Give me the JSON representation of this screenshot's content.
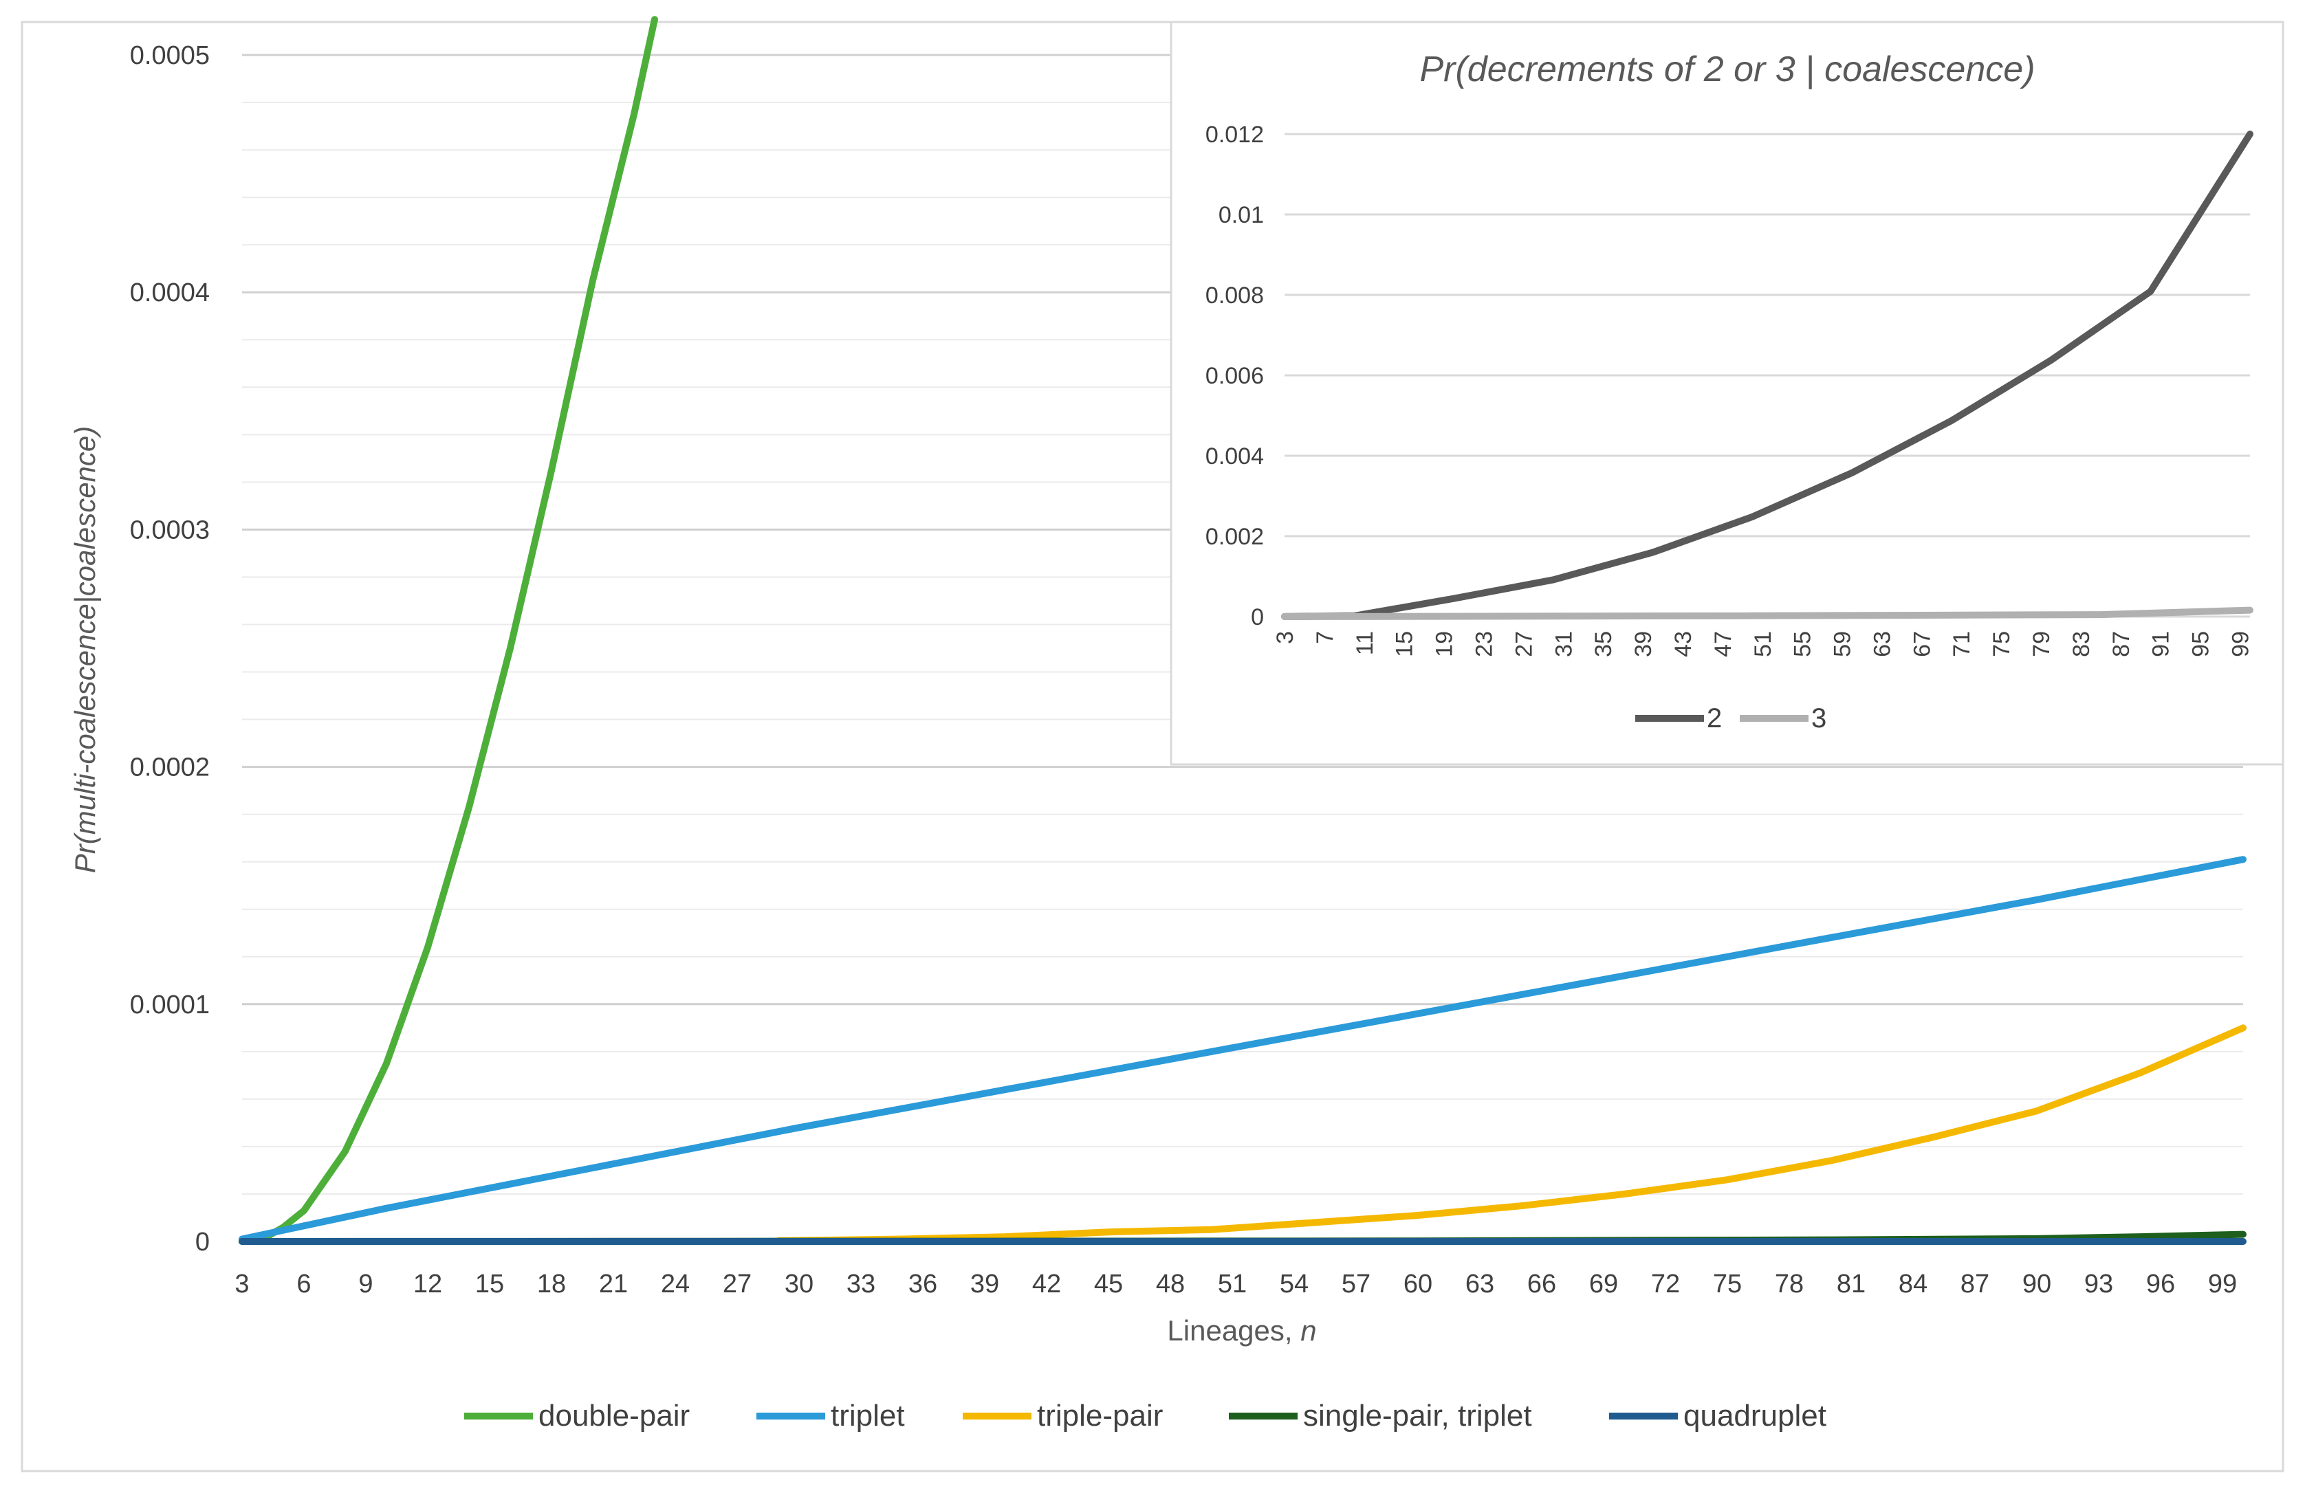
{
  "chart_data": [
    {
      "type": "line",
      "title": "",
      "xlabel_prefix": "Lineages, ",
      "xlabel_var": "n",
      "ylabel": "Pr(multi-coalescence|coalescence)",
      "xlim": [
        3,
        100
      ],
      "ylim": [
        0,
        0.0005
      ],
      "y_ticks": [
        "0",
        "0.0001",
        "0.0002",
        "0.0003",
        "0.0004",
        "0.0005"
      ],
      "x_tick_labels": [
        "3",
        "6",
        "9",
        "12",
        "15",
        "18",
        "21",
        "24",
        "27",
        "30",
        "33",
        "36",
        "39",
        "42",
        "45",
        "48",
        "51",
        "54",
        "57",
        "60",
        "63",
        "66",
        "69",
        "72",
        "75",
        "78",
        "81",
        "84",
        "87",
        "90",
        "93",
        "96",
        "99"
      ],
      "legend_position": "bottom",
      "series": [
        {
          "name": "double-pair",
          "color": "#4DAF3A",
          "x": [
            3,
            4,
            5,
            6,
            8,
            10,
            12,
            14,
            16,
            18,
            20,
            22,
            23
          ],
          "y": [
            0,
            1e-06,
            6e-06,
            1.3e-05,
            3.8e-05,
            7.5e-05,
            0.000124,
            0.000183,
            0.00025,
            0.000325,
            0.000405,
            0.000475,
            0.000515
          ]
        },
        {
          "name": "triplet",
          "color": "#2B9AD9",
          "x": [
            3,
            10,
            20,
            30,
            40,
            50,
            60,
            70,
            80,
            90,
            100
          ],
          "y": [
            1e-06,
            1.4e-05,
            3.1e-05,
            4.8e-05,
            6.4e-05,
            8e-05,
            9.6e-05,
            0.000112,
            0.000128,
            0.000144,
            0.000161
          ]
        },
        {
          "name": "triple-pair",
          "color": "#F5B800",
          "x": [
            29,
            35,
            40,
            45,
            50,
            55,
            60,
            65,
            70,
            75,
            80,
            85,
            90,
            95,
            100
          ],
          "y": [
            3e-07,
            1e-06,
            2e-06,
            4e-06,
            5e-06,
            8e-06,
            1.1e-05,
            1.5e-05,
            2e-05,
            2.6e-05,
            3.4e-05,
            4.4e-05,
            5.5e-05,
            7.1e-05,
            9e-05
          ]
        },
        {
          "name": "single-pair, triplet",
          "color": "#1E5F1E",
          "x": [
            3,
            60,
            80,
            90,
            95,
            100
          ],
          "y": [
            0,
            2e-07,
            7e-07,
            1.2e-06,
            2e-06,
            3e-06
          ]
        },
        {
          "name": "quadruplet",
          "color": "#1F5B8E",
          "x": [
            3,
            50,
            100
          ],
          "y": [
            0,
            0,
            0
          ]
        }
      ]
    },
    {
      "type": "line",
      "title": "Pr(decrements of 2 or 3 | coalescence)",
      "xlabel": "",
      "ylabel": "",
      "xlim": [
        3,
        100
      ],
      "ylim": [
        0,
        0.012
      ],
      "y_ticks": [
        "0",
        "0.002",
        "0.004",
        "0.006",
        "0.008",
        "0.01",
        "0.012"
      ],
      "x_tick_labels": [
        "3",
        "7",
        "11",
        "15",
        "19",
        "23",
        "27",
        "31",
        "35",
        "39",
        "43",
        "47",
        "51",
        "55",
        "59",
        "63",
        "67",
        "71",
        "75",
        "79",
        "83",
        "87",
        "91",
        "95",
        "99"
      ],
      "legend_position": "bottom",
      "series": [
        {
          "name": "2",
          "color": "#595959",
          "x": [
            3,
            10,
            20,
            30,
            40,
            50,
            60,
            70,
            80,
            90,
            100
          ],
          "y": [
            1.5e-06,
            1.64e-05,
            0.00045,
            0.000916,
            0.001596,
            0.002482,
            0.003574,
            0.004872,
            0.006375,
            0.008085,
            0.012
          ]
        },
        {
          "name": "3",
          "color": "#B0B0B0",
          "x": [
            3,
            50,
            85,
            100
          ],
          "y": [
            0,
            2e-05,
            5e-05,
            0.00016
          ]
        }
      ]
    }
  ]
}
